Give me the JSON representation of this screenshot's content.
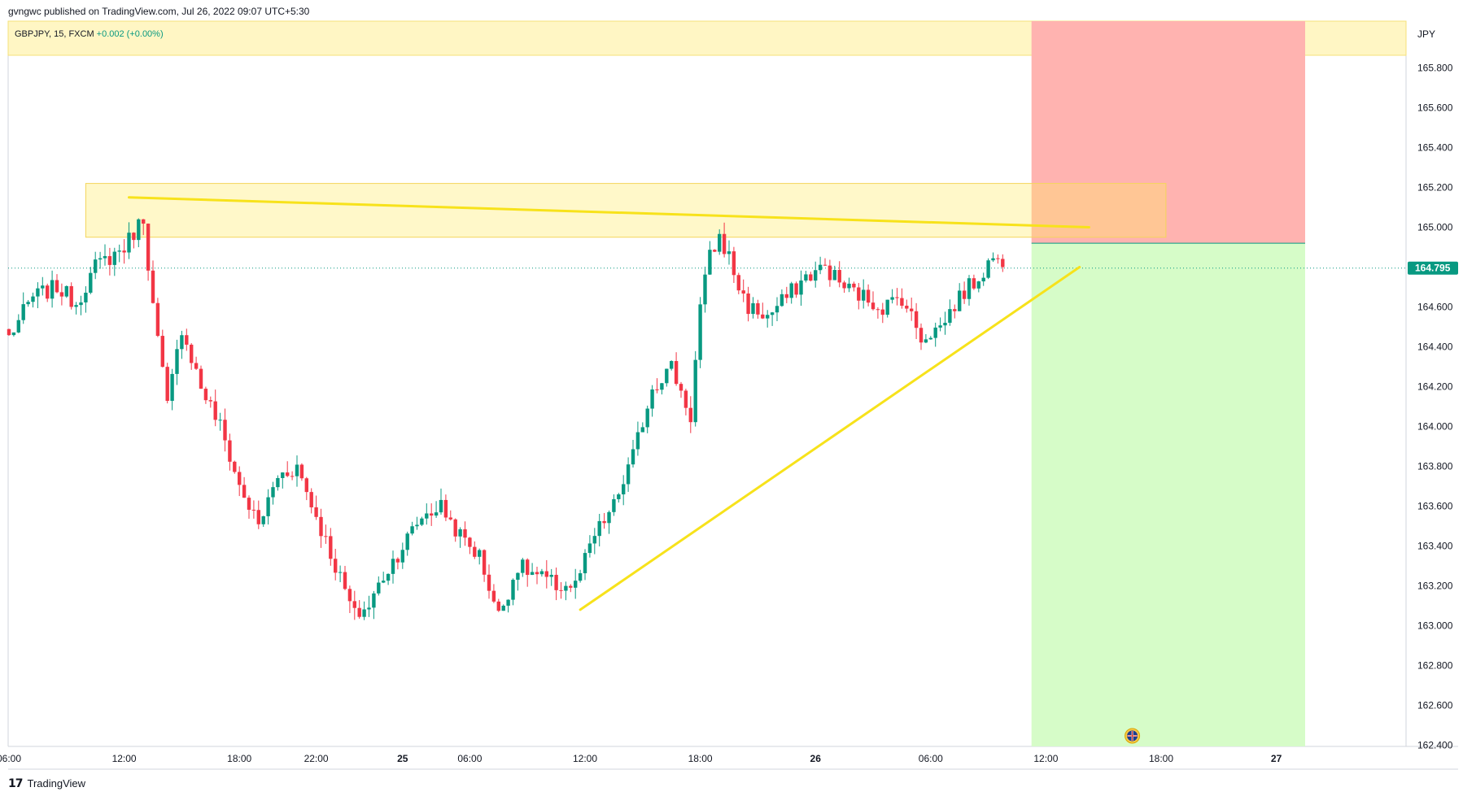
{
  "header": {
    "published": "gvngwc published on TradingView.com, Jul 26, 2022 09:07 UTC+5:30"
  },
  "legend": {
    "symbol": "GBPJPY, 15, FXCM",
    "change": "+0.002 (+0.00%)"
  },
  "currency": "JPY",
  "last_price": "164.795",
  "footer": {
    "brand": "TradingView"
  },
  "colors": {
    "up": "#089981",
    "down": "#f23645",
    "trendline": "#f7e21b",
    "zone": "#fff6c4",
    "stop": "#ffb3b0",
    "target": "#d6fcc8"
  },
  "chart_data": {
    "type": "candlestick",
    "symbol": "GBPJPY",
    "timeframe": "15",
    "y_axis": {
      "ticks": [
        "165.800",
        "165.600",
        "165.400",
        "165.200",
        "165.000",
        "164.600",
        "164.400",
        "164.200",
        "164.000",
        "163.800",
        "163.600",
        "163.400",
        "163.200",
        "163.000",
        "162.800",
        "162.600",
        "162.400"
      ],
      "range": [
        162.4,
        165.8
      ]
    },
    "x_axis": {
      "ticks": [
        {
          "label": "06:00",
          "idx": 0
        },
        {
          "label": "12:00",
          "idx": 24
        },
        {
          "label": "18:00",
          "idx": 48
        },
        {
          "label": "22:00",
          "idx": 64
        },
        {
          "label": "25",
          "idx": 82
        },
        {
          "label": "06:00",
          "idx": 96
        },
        {
          "label": "12:00",
          "idx": 120
        },
        {
          "label": "18:00",
          "idx": 144
        },
        {
          "label": "26",
          "idx": 168
        },
        {
          "label": "06:00",
          "idx": 192
        },
        {
          "label": "12:00",
          "idx": 216
        },
        {
          "label": "18:00",
          "idx": 240
        },
        {
          "label": "27",
          "idx": 264
        }
      ]
    },
    "anchors": [
      [
        0,
        164.45
      ],
      [
        5,
        164.65
      ],
      [
        10,
        164.7
      ],
      [
        14,
        164.62
      ],
      [
        18,
        164.8
      ],
      [
        24,
        164.9
      ],
      [
        28,
        165.05
      ],
      [
        30,
        164.6
      ],
      [
        33,
        164.1
      ],
      [
        36,
        164.5
      ],
      [
        40,
        164.2
      ],
      [
        44,
        164.0
      ],
      [
        48,
        163.7
      ],
      [
        52,
        163.5
      ],
      [
        56,
        163.75
      ],
      [
        60,
        163.8
      ],
      [
        64,
        163.55
      ],
      [
        68,
        163.3
      ],
      [
        72,
        163.05
      ],
      [
        75,
        163.1
      ],
      [
        78,
        163.25
      ],
      [
        82,
        163.4
      ],
      [
        86,
        163.55
      ],
      [
        90,
        163.6
      ],
      [
        94,
        163.45
      ],
      [
        98,
        163.35
      ],
      [
        102,
        163.05
      ],
      [
        106,
        163.3
      ],
      [
        110,
        163.25
      ],
      [
        114,
        163.2
      ],
      [
        118,
        163.2
      ],
      [
        122,
        163.45
      ],
      [
        126,
        163.6
      ],
      [
        130,
        163.85
      ],
      [
        134,
        164.2
      ],
      [
        138,
        164.3
      ],
      [
        142,
        164.05
      ],
      [
        144,
        164.6
      ],
      [
        146,
        164.85
      ],
      [
        148,
        164.95
      ],
      [
        150,
        164.85
      ],
      [
        152,
        164.7
      ],
      [
        154,
        164.6
      ],
      [
        158,
        164.55
      ],
      [
        162,
        164.65
      ],
      [
        166,
        164.75
      ],
      [
        170,
        164.8
      ],
      [
        174,
        164.7
      ],
      [
        178,
        164.65
      ],
      [
        182,
        164.6
      ],
      [
        186,
        164.65
      ],
      [
        190,
        164.45
      ],
      [
        194,
        164.5
      ],
      [
        198,
        164.65
      ],
      [
        202,
        164.75
      ],
      [
        205,
        164.85
      ],
      [
        207,
        164.8
      ]
    ],
    "trendlines": [
      {
        "from": [
          25,
          165.15
        ],
        "to": [
          225,
          165.0
        ]
      },
      {
        "from": [
          119,
          163.08
        ],
        "to": [
          223,
          164.8
        ]
      }
    ],
    "resistance_zone": {
      "x_from": 16,
      "x_to": 241,
      "y_from": 164.95,
      "y_to": 165.22
    },
    "position": {
      "type": "short",
      "x_from": 213,
      "x_to": 270,
      "entry": 164.92,
      "stop_top": 166.7,
      "target_bottom": 162.4
    }
  }
}
